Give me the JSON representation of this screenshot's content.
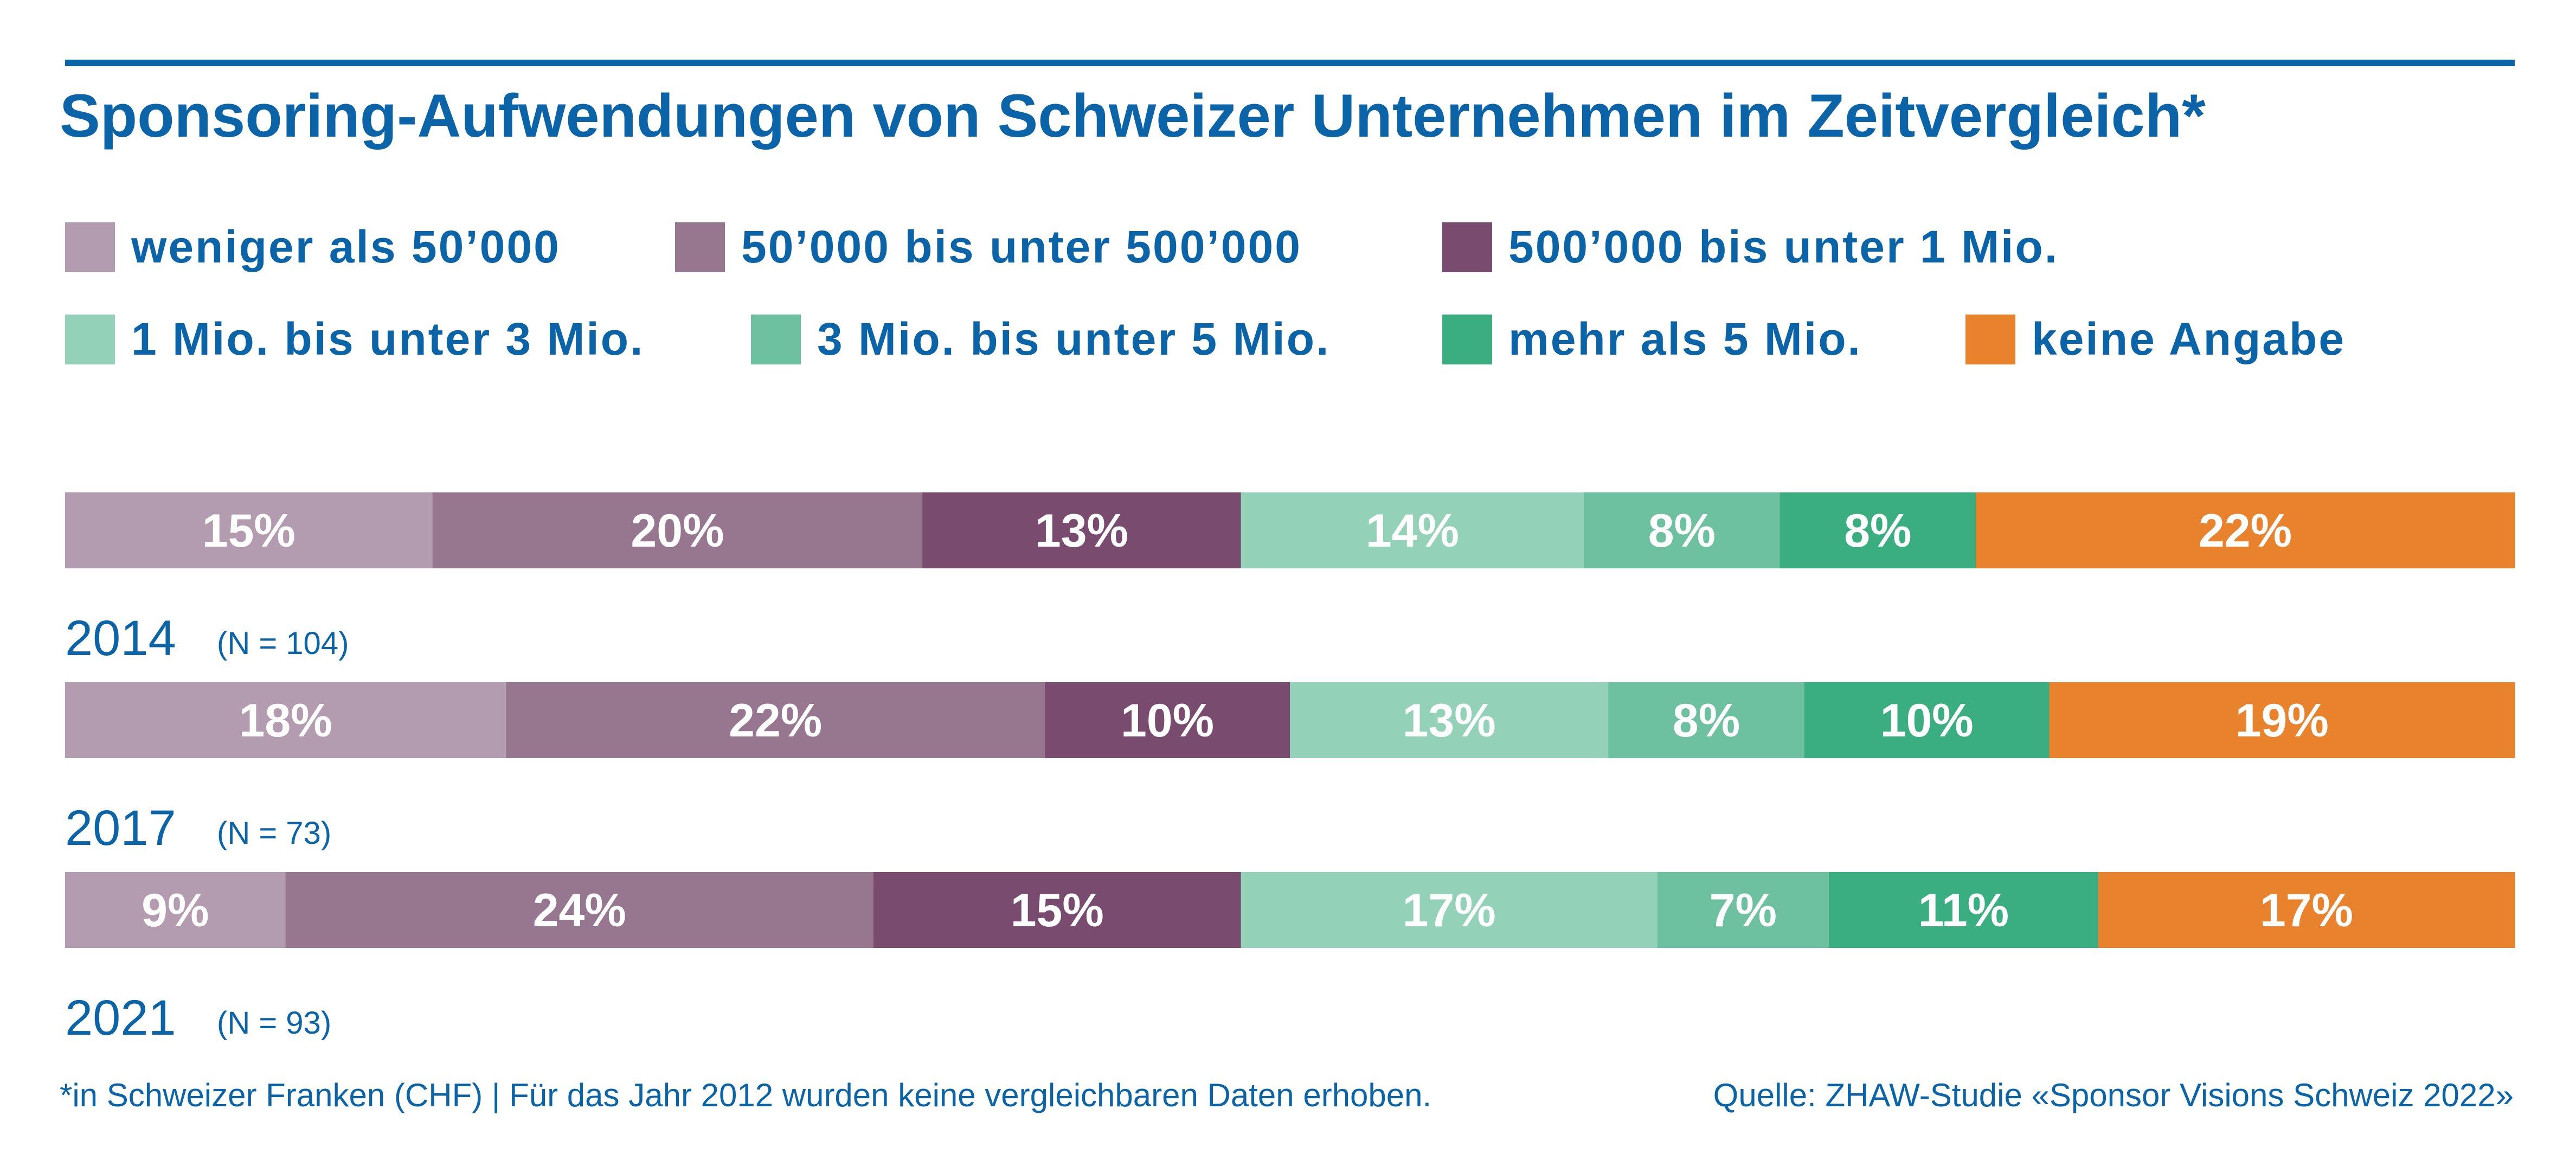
{
  "chart_data": {
    "type": "bar",
    "orientation": "horizontal",
    "stacked": true,
    "normalized": true,
    "title": "Sponsoring-Aufwendungen von Schweizer Unternehmen im Zeitvergleich*",
    "legend_position": "top",
    "categories": [
      "2014",
      "2017",
      "2021"
    ],
    "sample_sizes": [
      "(N = 104)",
      "(N = 73)",
      "(N = 93)"
    ],
    "series": [
      {
        "name": "weniger als 50’000",
        "color": "#b39cb0",
        "values": [
          15,
          18,
          9
        ]
      },
      {
        "name": "50’000 bis unter 500’000",
        "color": "#97778f",
        "values": [
          20,
          22,
          24
        ]
      },
      {
        "name": "500’000 bis unter 1 Mio.",
        "color": "#784b6f",
        "values": [
          13,
          10,
          15
        ]
      },
      {
        "name": "1 Mio. bis unter 3 Mio.",
        "color": "#93d2b8",
        "values": [
          14,
          13,
          17
        ]
      },
      {
        "name": "3 Mio. bis unter 5 Mio.",
        "color": "#6ec1a0",
        "values": [
          8,
          8,
          7
        ]
      },
      {
        "name": "mehr als 5 Mio.",
        "color": "#3aae80",
        "values": [
          8,
          10,
          11
        ]
      },
      {
        "name": "keine Angabe",
        "color": "#e8822c",
        "values": [
          22,
          19,
          17
        ]
      }
    ],
    "data_labels": [
      [
        "15%",
        "20%",
        "13%",
        "14%",
        "8%",
        "8%",
        "22%"
      ],
      [
        "18%",
        "22%",
        "10%",
        "13%",
        "8%",
        "10%",
        "19%"
      ],
      [
        "9%",
        "24%",
        "15%",
        "17%",
        "7%",
        "11%",
        "17%"
      ]
    ],
    "footnote": "*in Schweizer Franken (CHF) | Für das Jahr 2012 wurden keine vergleichbaren Daten erhoben.",
    "source": "Quelle: ZHAW-Studie «Sponsor Visions Schweiz 2022»",
    "colors": {
      "text_blue": "#0b64a8",
      "rule_blue": "#0b64a8",
      "bar_label": "#ffffff"
    }
  }
}
